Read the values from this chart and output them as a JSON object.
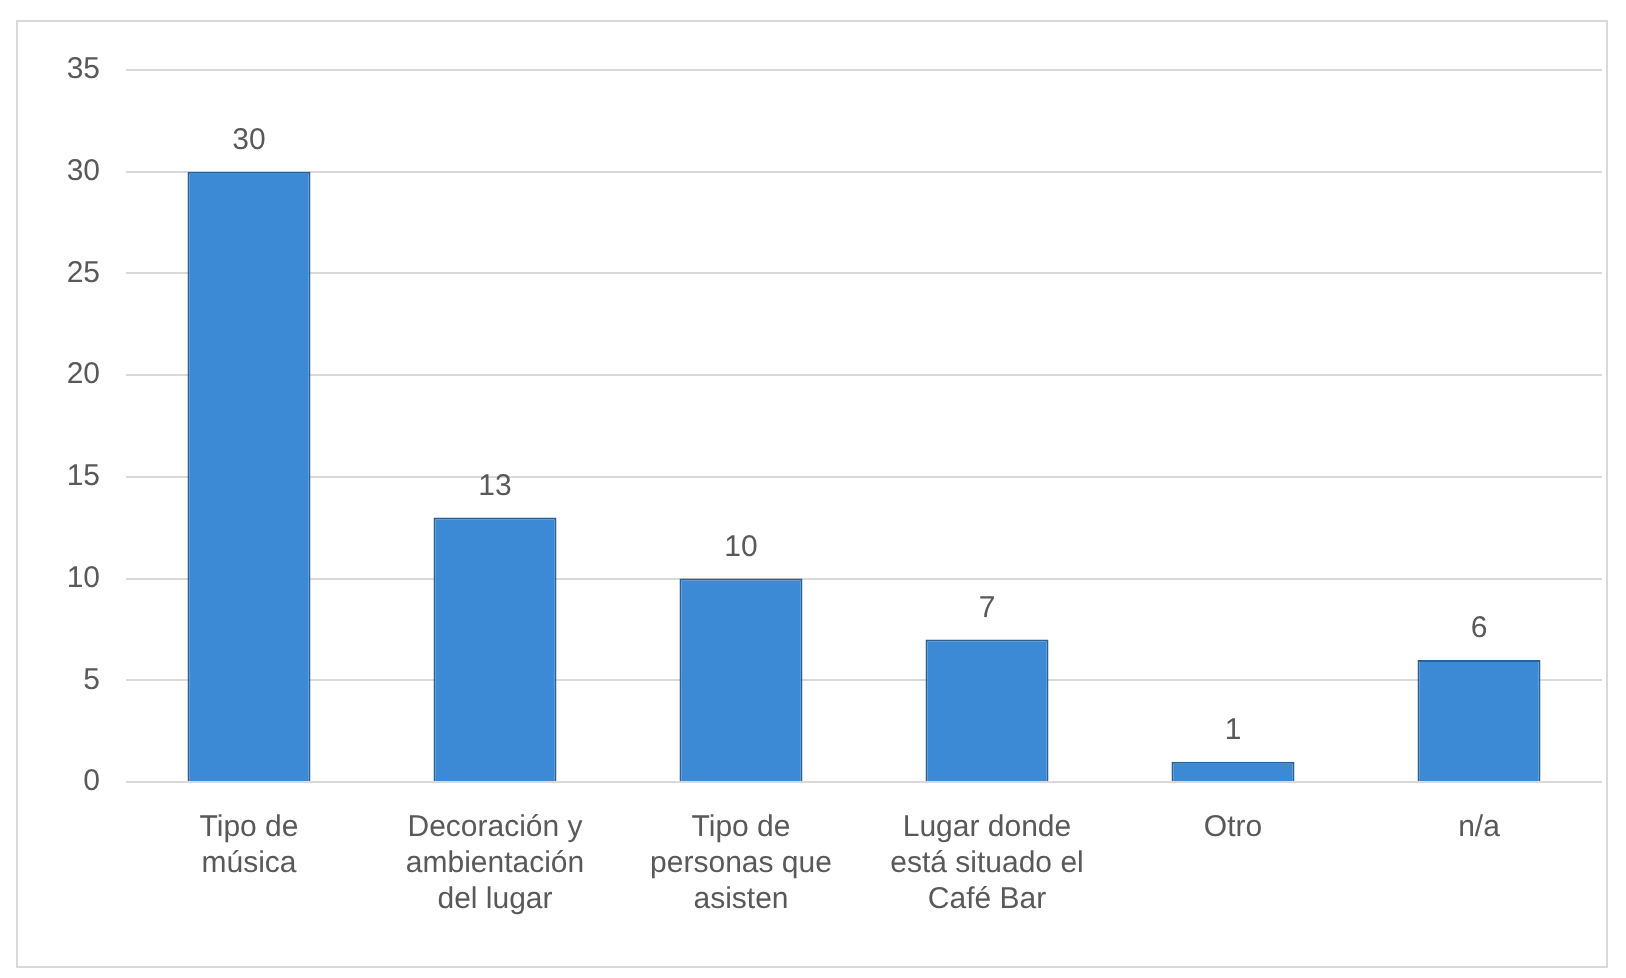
{
  "chart_data": {
    "type": "bar",
    "categories": [
      "Tipo de música",
      "Decoración y ambientación del lugar",
      "Tipo de personas que asisten",
      "Lugar donde está situado el Café Bar",
      "Otro",
      "n/a"
    ],
    "values": [
      30,
      13,
      10,
      7,
      1,
      6
    ],
    "color": "#3c8ad6",
    "ylim": [
      0,
      35
    ],
    "yticks": [
      0,
      5,
      10,
      15,
      20,
      25,
      30,
      35
    ],
    "grid": "y",
    "legend": false,
    "data_labels": true
  }
}
